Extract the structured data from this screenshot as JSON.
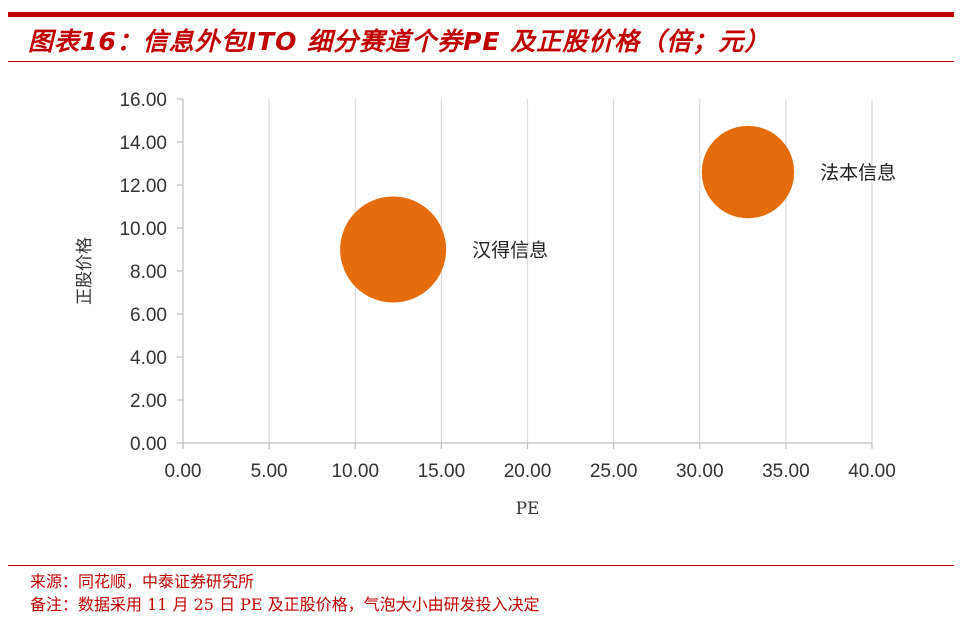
{
  "page": {
    "title": "图表16：信息外包ITO 细分赛道个券PE 及正股价格（倍；元）",
    "source": "来源：同花顺，中泰证券研究所",
    "note": "备注：数据采用 11 月 25 日 PE 及正股价格，气泡大小由研发投入决定"
  },
  "colors": {
    "accent": "#c00000",
    "bubble": "#e46c0a",
    "grid": "#d9d9d9"
  },
  "chart_data": {
    "type": "scatter",
    "xlabel": "PE",
    "ylabel": "正股价格",
    "xlim": [
      0,
      40
    ],
    "ylim": [
      0,
      16
    ],
    "x_ticks": [
      "0.00",
      "5.00",
      "10.00",
      "15.00",
      "20.00",
      "25.00",
      "30.00",
      "35.00",
      "40.00"
    ],
    "y_ticks": [
      "0.00",
      "2.00",
      "4.00",
      "6.00",
      "8.00",
      "10.00",
      "12.00",
      "14.00",
      "16.00"
    ],
    "x_tick_values": [
      0,
      5,
      10,
      15,
      20,
      25,
      30,
      35,
      40
    ],
    "y_tick_values": [
      0,
      2,
      4,
      6,
      8,
      10,
      12,
      14,
      16
    ],
    "grid": "vertical",
    "bubble_size_meaning": "研发投入",
    "points": [
      {
        "label": "汉得信息",
        "x": 12.2,
        "y": 9.0,
        "size": 1.0
      },
      {
        "label": "法本信息",
        "x": 32.8,
        "y": 12.6,
        "size": 0.76
      }
    ]
  }
}
